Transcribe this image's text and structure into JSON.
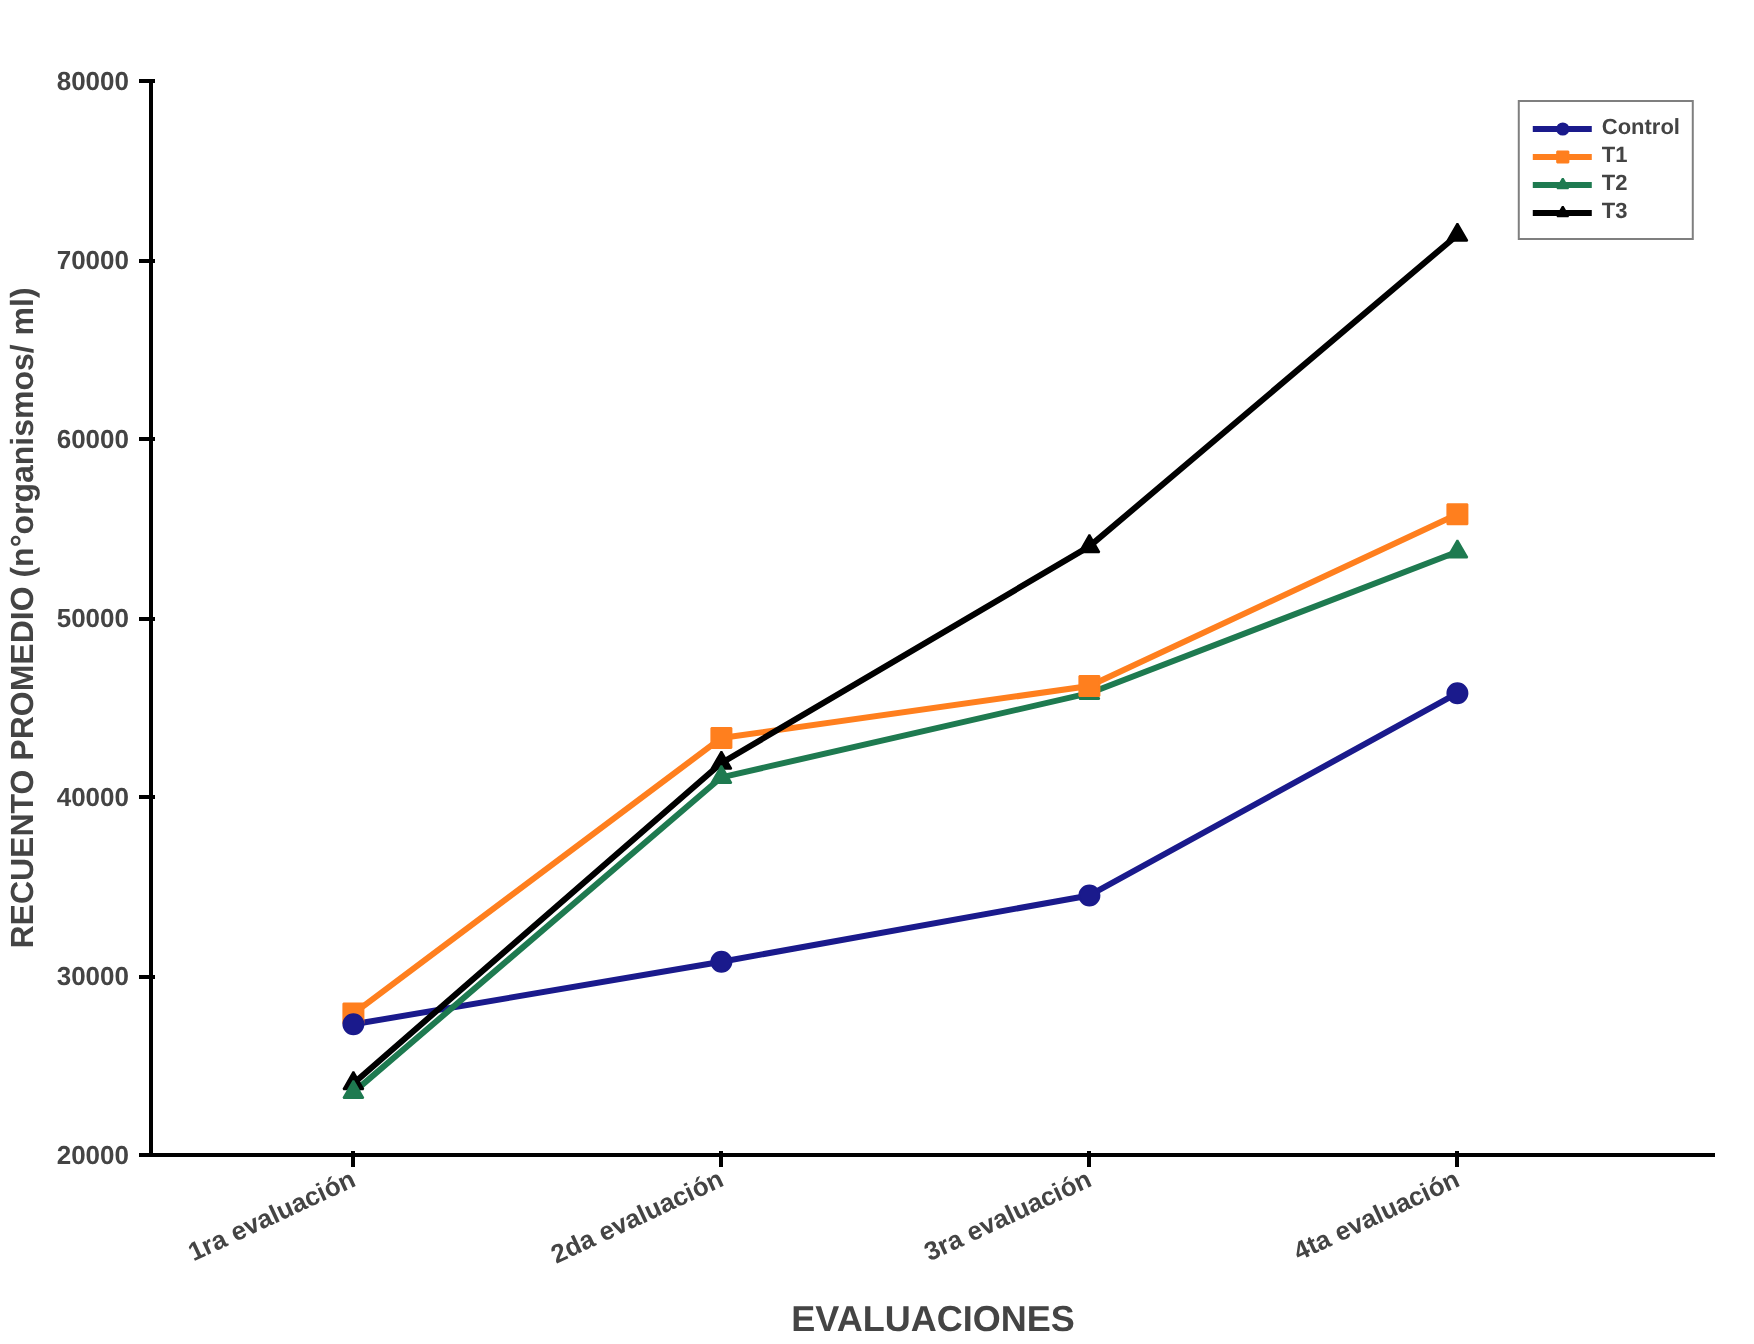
{
  "chart_data": {
    "type": "line",
    "xlabel": "EVALUACIONES",
    "ylabel": "RECUENTO PROMEDIO (n°organismos/ ml)",
    "categories": [
      "1ra evaluación",
      "2da evaluación",
      "3ra evaluación",
      "4ta evaluación"
    ],
    "ylim": [
      20000,
      80000
    ],
    "yticks": [
      20000,
      30000,
      40000,
      50000,
      60000,
      70000,
      80000
    ],
    "grid": false,
    "legend": "top right",
    "line_style": "solid",
    "series": [
      {
        "name": "Control",
        "color": "#1a1a8c",
        "marker": "circle",
        "values": [
          27300,
          30800,
          34500,
          45800
        ]
      },
      {
        "name": "T1",
        "color": "#ff7f1e",
        "marker": "square",
        "values": [
          27900,
          43300,
          46200,
          55800
        ]
      },
      {
        "name": "T2",
        "color": "#1e7a50",
        "marker": "triangle",
        "values": [
          23500,
          41100,
          45800,
          53700
        ]
      },
      {
        "name": "T3",
        "color": "#000000",
        "marker": "triangle",
        "values": [
          24000,
          41900,
          54000,
          71400
        ]
      }
    ]
  }
}
